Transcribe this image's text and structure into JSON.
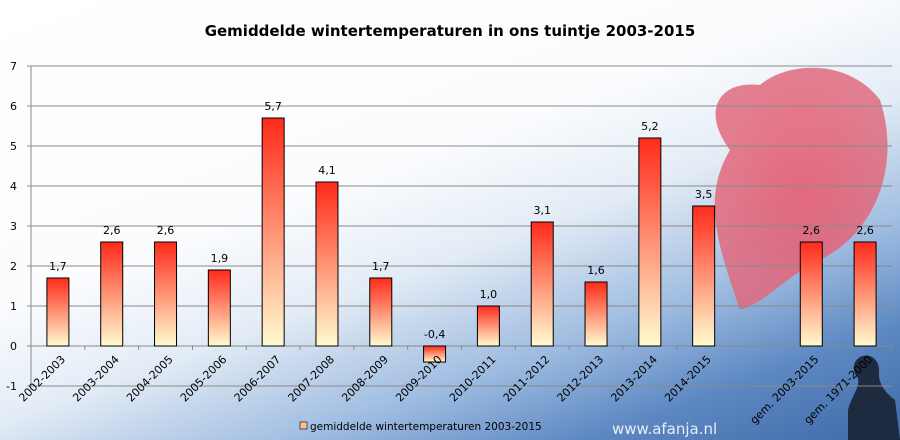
{
  "chart_data": {
    "type": "bar",
    "title": "Gemiddelde wintertemperaturen in ons tuintje 2003-2015",
    "categories": [
      "2002-2003",
      "2003-2004",
      "2004-2005",
      "2005-2006",
      "2006-2007",
      "2007-2008",
      "2008-2009",
      "2009-2010",
      "2010-2011",
      "2011-2012",
      "2012-2013",
      "2013-2014",
      "2014-2015",
      "",
      "gem. 2003-2015",
      "gem. 1971-2000"
    ],
    "series": [
      {
        "name": "gemiddelde wintertemperaturen 2003-2015",
        "values": [
          1.7,
          2.6,
          2.6,
          1.9,
          5.7,
          4.1,
          1.7,
          -0.4,
          1.0,
          3.1,
          1.6,
          5.2,
          3.5,
          null,
          2.6,
          2.6
        ]
      }
    ],
    "data_labels": [
      "1,7",
      "2,6",
      "2,6",
      "1,9",
      "5,7",
      "4,1",
      "1,7",
      "-0,4",
      "1,0",
      "3,1",
      "1,6",
      "5,2",
      "3,5",
      "",
      "2,6",
      "2,6"
    ],
    "ylim": [
      -1,
      7
    ],
    "yticks": [
      -1,
      0,
      1,
      2,
      3,
      4,
      5,
      6,
      7
    ],
    "grid": true,
    "legend_position": "bottom",
    "xlabel": "",
    "ylabel": "",
    "colors": {
      "bar_top": "#ff2a1a",
      "bar_bottom": "#fffbd0",
      "grid": "#8a8a8a"
    }
  },
  "watermark": "www.afanja.nl"
}
